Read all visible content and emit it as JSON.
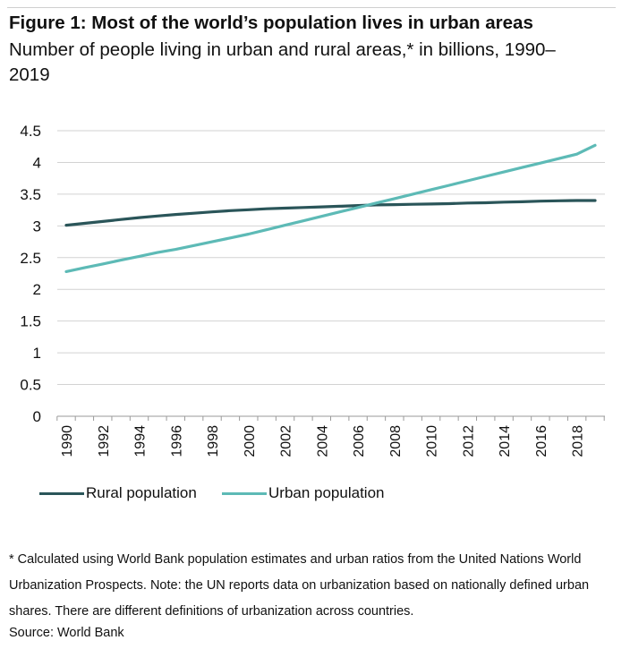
{
  "header": {
    "title": "Figure 1: Most of the world’s population lives in urban areas",
    "subtitle": "Number of people living in urban and rural areas,* in billions, 1990–2019"
  },
  "chart_data": {
    "type": "line",
    "title": "Figure 1: Most of the world’s population lives in urban areas",
    "subtitle": "Number of people living in urban and rural areas,* in billions, 1990–2019",
    "xlabel": "",
    "ylabel": "",
    "ylim": [
      0,
      4.5
    ],
    "yticks": [
      "0",
      "0.5",
      "1",
      "1.5",
      "2",
      "2.5",
      "3",
      "3.5",
      "4",
      "4.5"
    ],
    "xticks": [
      "1990",
      "1992",
      "1994",
      "1996",
      "1998",
      "2000",
      "2002",
      "2004",
      "2006",
      "2008",
      "2010",
      "2012",
      "2014",
      "2016",
      "2018"
    ],
    "grid": "horizontal",
    "legend_position": "bottom",
    "x": [
      1990,
      1991,
      1992,
      1993,
      1994,
      1995,
      1996,
      1997,
      1998,
      1999,
      2000,
      2001,
      2002,
      2003,
      2004,
      2005,
      2006,
      2007,
      2008,
      2009,
      2010,
      2011,
      2012,
      2013,
      2014,
      2015,
      2016,
      2017,
      2018,
      2019
    ],
    "series": [
      {
        "name": "Rural population",
        "color": "#2a5559",
        "values": [
          3.01,
          3.04,
          3.07,
          3.1,
          3.13,
          3.155,
          3.18,
          3.2,
          3.22,
          3.24,
          3.255,
          3.27,
          3.28,
          3.29,
          3.3,
          3.31,
          3.32,
          3.33,
          3.335,
          3.34,
          3.345,
          3.35,
          3.36,
          3.365,
          3.375,
          3.38,
          3.39,
          3.395,
          3.4,
          3.4
        ]
      },
      {
        "name": "Urban population",
        "color": "#5dbab6",
        "values": [
          2.28,
          2.34,
          2.4,
          2.46,
          2.52,
          2.58,
          2.63,
          2.69,
          2.75,
          2.81,
          2.87,
          2.94,
          3.01,
          3.08,
          3.15,
          3.22,
          3.29,
          3.36,
          3.43,
          3.5,
          3.57,
          3.64,
          3.71,
          3.78,
          3.85,
          3.92,
          3.99,
          4.06,
          4.13,
          4.27
        ]
      }
    ]
  },
  "footnote": "* Calculated using World Bank population estimates and urban ratios from the United Nations World Urbanization Prospects. Note: the UN reports data on urbanization based on nationally defined urban shares. There are different definitions of urbanization across countries.",
  "source": "Source: World Bank"
}
